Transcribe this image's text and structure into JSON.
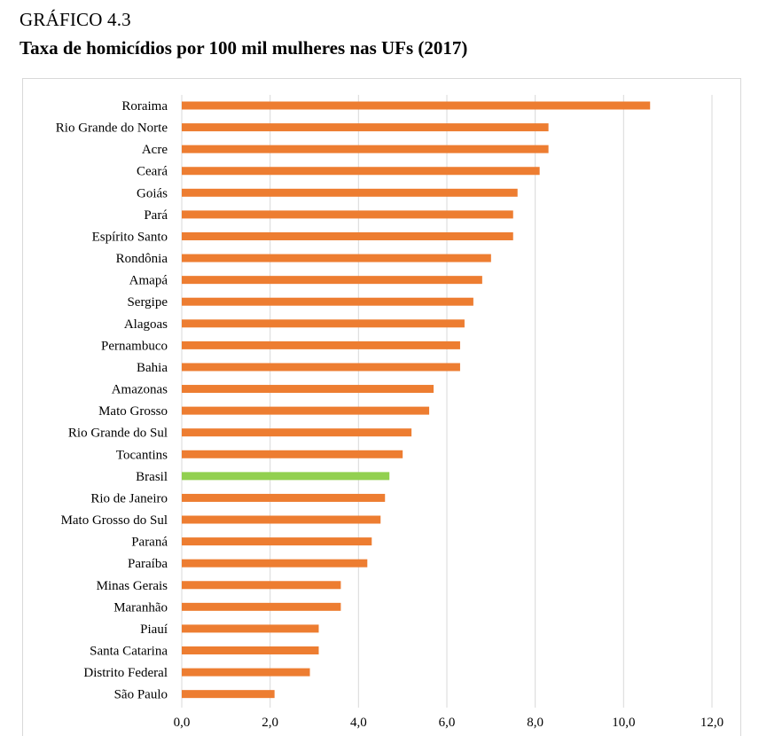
{
  "header": {
    "kicker": "GRÁFICO 4.3",
    "title": "Taxa de homicídios por 100 mil mulheres nas UFs (2017)"
  },
  "chart_data": {
    "type": "bar",
    "orientation": "horizontal",
    "categories": [
      "Roraima",
      "Rio Grande do Norte",
      "Acre",
      "Ceará",
      "Goiás",
      "Pará",
      "Espírito Santo",
      "Rondônia",
      "Amapá",
      "Sergipe",
      "Alagoas",
      "Pernambuco",
      "Bahia",
      "Amazonas",
      "Mato Grosso",
      "Rio Grande do Sul",
      "Tocantins",
      "Brasil",
      "Rio de Janeiro",
      "Mato Grosso do Sul",
      "Paraná",
      "Paraíba",
      "Minas Gerais",
      "Maranhão",
      "Piauí",
      "Santa Catarina",
      "Distrito Federal",
      "São Paulo"
    ],
    "values": [
      10.6,
      8.3,
      8.3,
      8.1,
      7.6,
      7.5,
      7.5,
      7.0,
      6.8,
      6.6,
      6.4,
      6.3,
      6.3,
      5.7,
      5.6,
      5.2,
      5.0,
      4.7,
      4.6,
      4.5,
      4.3,
      4.2,
      3.6,
      3.6,
      3.1,
      3.1,
      2.9,
      2.1
    ],
    "highlight_category": "Brasil",
    "xlim": [
      0,
      12
    ],
    "xticks": [
      "0,0",
      "2,0",
      "4,0",
      "6,0",
      "8,0",
      "10,0",
      "12,0"
    ],
    "grid": true,
    "colors": {
      "bar": "#ed7d31",
      "highlight": "#92d050",
      "grid": "#d9d9d9"
    }
  }
}
